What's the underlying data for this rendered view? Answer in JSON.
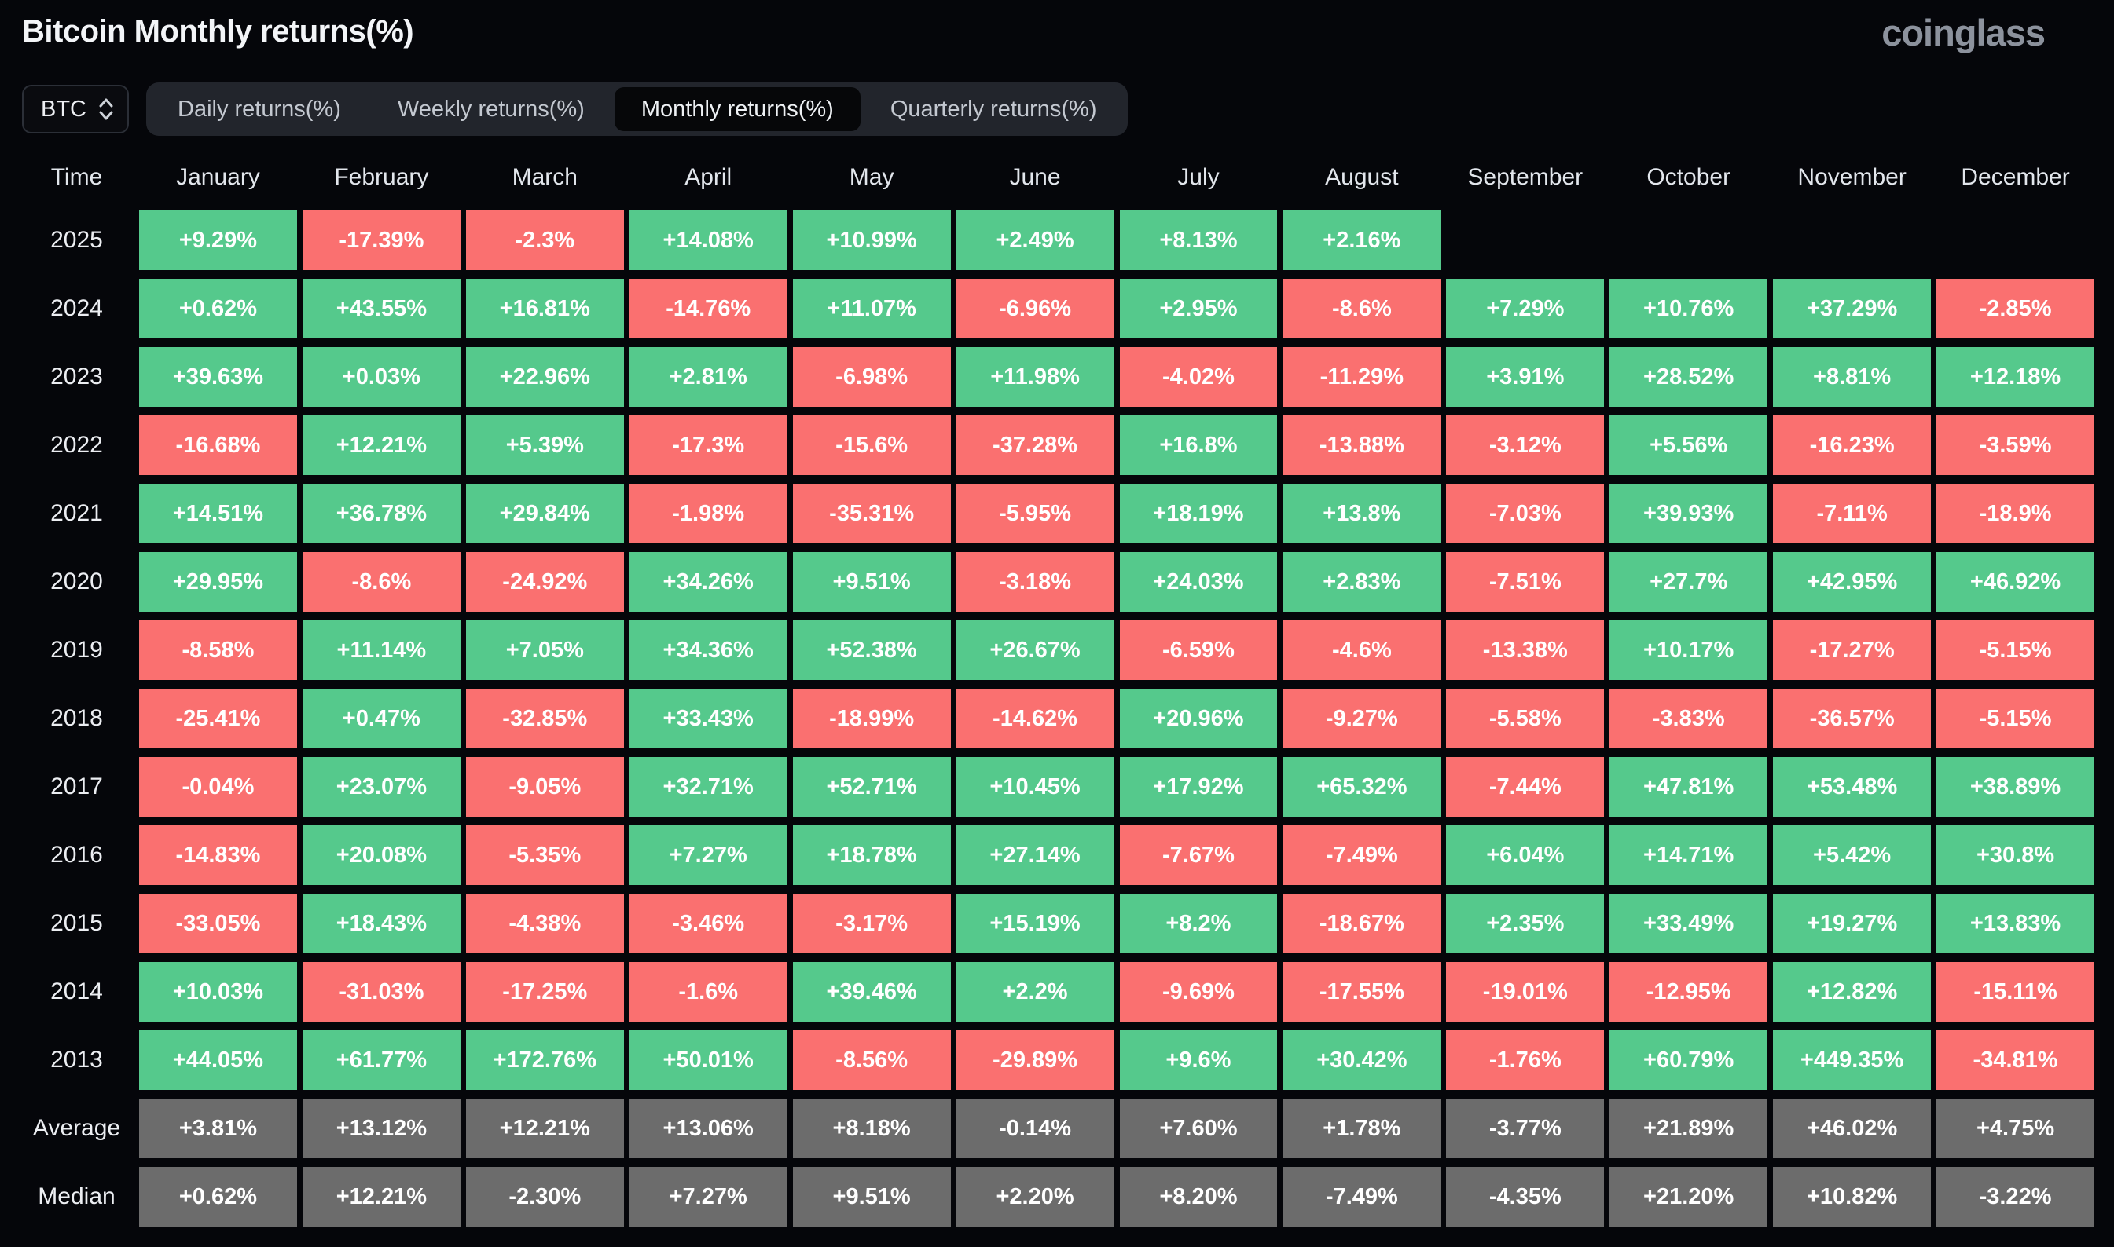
{
  "header": {
    "title": "Bitcoin Monthly returns(%)",
    "logo": "coinglass"
  },
  "controls": {
    "symbol_select": {
      "value": "BTC"
    },
    "tabs": [
      {
        "label": "Daily returns(%)",
        "active": false
      },
      {
        "label": "Weekly returns(%)",
        "active": false
      },
      {
        "label": "Monthly returns(%)",
        "active": true
      },
      {
        "label": "Quarterly returns(%)",
        "active": false
      }
    ]
  },
  "chart_data": {
    "type": "heatmap",
    "title": "Bitcoin Monthly returns(%)",
    "row_header": "Time",
    "columns": [
      "January",
      "February",
      "March",
      "April",
      "May",
      "June",
      "July",
      "August",
      "September",
      "October",
      "November",
      "December"
    ],
    "colors": {
      "positive": "#55c98c",
      "negative": "#fa7070",
      "neutral": "#6c6c6c"
    },
    "rows": [
      {
        "label": "2025",
        "neutral": false,
        "values": [
          "+9.29%",
          "-17.39%",
          "-2.3%",
          "+14.08%",
          "+10.99%",
          "+2.49%",
          "+8.13%",
          "+2.16%",
          null,
          null,
          null,
          null
        ]
      },
      {
        "label": "2024",
        "neutral": false,
        "values": [
          "+0.62%",
          "+43.55%",
          "+16.81%",
          "-14.76%",
          "+11.07%",
          "-6.96%",
          "+2.95%",
          "-8.6%",
          "+7.29%",
          "+10.76%",
          "+37.29%",
          "-2.85%"
        ]
      },
      {
        "label": "2023",
        "neutral": false,
        "values": [
          "+39.63%",
          "+0.03%",
          "+22.96%",
          "+2.81%",
          "-6.98%",
          "+11.98%",
          "-4.02%",
          "-11.29%",
          "+3.91%",
          "+28.52%",
          "+8.81%",
          "+12.18%"
        ]
      },
      {
        "label": "2022",
        "neutral": false,
        "values": [
          "-16.68%",
          "+12.21%",
          "+5.39%",
          "-17.3%",
          "-15.6%",
          "-37.28%",
          "+16.8%",
          "-13.88%",
          "-3.12%",
          "+5.56%",
          "-16.23%",
          "-3.59%"
        ]
      },
      {
        "label": "2021",
        "neutral": false,
        "values": [
          "+14.51%",
          "+36.78%",
          "+29.84%",
          "-1.98%",
          "-35.31%",
          "-5.95%",
          "+18.19%",
          "+13.8%",
          "-7.03%",
          "+39.93%",
          "-7.11%",
          "-18.9%"
        ]
      },
      {
        "label": "2020",
        "neutral": false,
        "values": [
          "+29.95%",
          "-8.6%",
          "-24.92%",
          "+34.26%",
          "+9.51%",
          "-3.18%",
          "+24.03%",
          "+2.83%",
          "-7.51%",
          "+27.7%",
          "+42.95%",
          "+46.92%"
        ]
      },
      {
        "label": "2019",
        "neutral": false,
        "values": [
          "-8.58%",
          "+11.14%",
          "+7.05%",
          "+34.36%",
          "+52.38%",
          "+26.67%",
          "-6.59%",
          "-4.6%",
          "-13.38%",
          "+10.17%",
          "-17.27%",
          "-5.15%"
        ]
      },
      {
        "label": "2018",
        "neutral": false,
        "values": [
          "-25.41%",
          "+0.47%",
          "-32.85%",
          "+33.43%",
          "-18.99%",
          "-14.62%",
          "+20.96%",
          "-9.27%",
          "-5.58%",
          "-3.83%",
          "-36.57%",
          "-5.15%"
        ]
      },
      {
        "label": "2017",
        "neutral": false,
        "values": [
          "-0.04%",
          "+23.07%",
          "-9.05%",
          "+32.71%",
          "+52.71%",
          "+10.45%",
          "+17.92%",
          "+65.32%",
          "-7.44%",
          "+47.81%",
          "+53.48%",
          "+38.89%"
        ]
      },
      {
        "label": "2016",
        "neutral": false,
        "values": [
          "-14.83%",
          "+20.08%",
          "-5.35%",
          "+7.27%",
          "+18.78%",
          "+27.14%",
          "-7.67%",
          "-7.49%",
          "+6.04%",
          "+14.71%",
          "+5.42%",
          "+30.8%"
        ]
      },
      {
        "label": "2015",
        "neutral": false,
        "values": [
          "-33.05%",
          "+18.43%",
          "-4.38%",
          "-3.46%",
          "-3.17%",
          "+15.19%",
          "+8.2%",
          "-18.67%",
          "+2.35%",
          "+33.49%",
          "+19.27%",
          "+13.83%"
        ]
      },
      {
        "label": "2014",
        "neutral": false,
        "values": [
          "+10.03%",
          "-31.03%",
          "-17.25%",
          "-1.6%",
          "+39.46%",
          "+2.2%",
          "-9.69%",
          "-17.55%",
          "-19.01%",
          "-12.95%",
          "+12.82%",
          "-15.11%"
        ]
      },
      {
        "label": "2013",
        "neutral": false,
        "values": [
          "+44.05%",
          "+61.77%",
          "+172.76%",
          "+50.01%",
          "-8.56%",
          "-29.89%",
          "+9.6%",
          "+30.42%",
          "-1.76%",
          "+60.79%",
          "+449.35%",
          "-34.81%"
        ]
      },
      {
        "label": "Average",
        "neutral": true,
        "values": [
          "+3.81%",
          "+13.12%",
          "+12.21%",
          "+13.06%",
          "+8.18%",
          "-0.14%",
          "+7.60%",
          "+1.78%",
          "-3.77%",
          "+21.89%",
          "+46.02%",
          "+4.75%"
        ]
      },
      {
        "label": "Median",
        "neutral": true,
        "values": [
          "+0.62%",
          "+12.21%",
          "-2.30%",
          "+7.27%",
          "+9.51%",
          "+2.20%",
          "+8.20%",
          "-7.49%",
          "-4.35%",
          "+21.20%",
          "+10.82%",
          "-3.22%"
        ]
      }
    ]
  }
}
